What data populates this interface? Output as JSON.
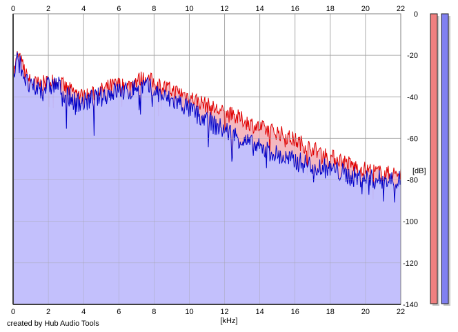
{
  "credit": "created by Hub Audio Tools",
  "chart_data": {
    "type": "area",
    "xlabel": "[kHz]",
    "ylabel": "[dB]",
    "xlim": [
      0,
      22
    ],
    "ylim": [
      -140,
      0
    ],
    "x_ticks": [
      0,
      2,
      4,
      6,
      8,
      10,
      12,
      14,
      16,
      18,
      20,
      22
    ],
    "y_ticks": [
      0,
      -20,
      -40,
      -60,
      -80,
      -100,
      -120,
      -140
    ],
    "grid": true,
    "series": [
      {
        "color": "#e00000",
        "fill": "#f4b8c0",
        "x": [
          0,
          0.25,
          0.5,
          0.75,
          1,
          1.5,
          2,
          2.5,
          3,
          3.5,
          4,
          4.5,
          5,
          5.5,
          6,
          6.5,
          7,
          7.5,
          8,
          8.5,
          9,
          9.5,
          10,
          10.5,
          11,
          11.5,
          12,
          12.5,
          13,
          13.5,
          14,
          14.5,
          15,
          15.5,
          16,
          16.5,
          17,
          17.5,
          18,
          18.5,
          19,
          19.5,
          20,
          20.5,
          21,
          21.5,
          22
        ],
        "values": [
          -30,
          -20,
          -24,
          -30,
          -33,
          -34,
          -33,
          -32,
          -36,
          -38,
          -40,
          -39,
          -37,
          -35,
          -34,
          -35,
          -32,
          -31,
          -33,
          -35,
          -37,
          -38,
          -40,
          -42,
          -44,
          -46,
          -48,
          -49,
          -51,
          -53,
          -55,
          -56,
          -57,
          -59,
          -61,
          -63,
          -65,
          -67,
          -69,
          -70,
          -72,
          -74,
          -75,
          -76,
          -77,
          -77,
          -77
        ]
      },
      {
        "color": "#0000c8",
        "fill": "#c0c0ff",
        "x": [
          0,
          0.25,
          0.5,
          0.75,
          1,
          1.5,
          2,
          2.5,
          3,
          3.5,
          4,
          4.5,
          5,
          5.5,
          6,
          6.5,
          7,
          7.5,
          8,
          8.5,
          9,
          9.5,
          10,
          10.5,
          11,
          11.5,
          12,
          12.5,
          13,
          13.5,
          14,
          14.5,
          15,
          15.5,
          16,
          16.5,
          17,
          17.5,
          18,
          18.5,
          19,
          19.5,
          20,
          20.5,
          21,
          21.5,
          22
        ],
        "values": [
          -32,
          -22,
          -26,
          -33,
          -36,
          -36,
          -35,
          -34,
          -39,
          -42,
          -43,
          -41,
          -40,
          -38,
          -37,
          -38,
          -35,
          -35,
          -37,
          -40,
          -42,
          -43,
          -46,
          -49,
          -51,
          -54,
          -56,
          -58,
          -61,
          -63,
          -65,
          -66,
          -68,
          -70,
          -71,
          -72,
          -73,
          -74,
          -75,
          -76,
          -78,
          -79,
          -79,
          -80,
          -80,
          -80,
          -80
        ]
      }
    ],
    "level_bars": [
      {
        "color": "#f08080",
        "fill_fraction": 1
      },
      {
        "color": "#8080f0",
        "fill_fraction": 1
      }
    ]
  }
}
